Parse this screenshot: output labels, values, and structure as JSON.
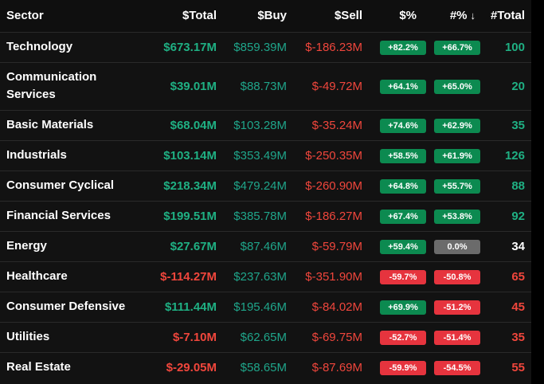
{
  "headers": {
    "sector": "Sector",
    "total": "$Total",
    "buy": "$Buy",
    "sell": "$Sell",
    "pct": "$%",
    "pct_count": "#%",
    "pct_count_sort_icon": "arrow-down-icon",
    "count": "#Total"
  },
  "colors": {
    "positive": "#1fb083",
    "negative": "#f0463c",
    "neutral": "#ffffff",
    "badge_positive": "#0c8a50",
    "badge_negative": "#e6343e",
    "badge_neutral": "#6b6b6b"
  },
  "rows": [
    {
      "sector": "Technology",
      "total": "$673.17M",
      "buy": "$859.39M",
      "sell": "$-186.23M",
      "pct": "+82.2%",
      "pct_count": "+66.7%",
      "count": "100",
      "sign": "pos",
      "count_sign": "pos"
    },
    {
      "sector": "Communication Services",
      "total": "$39.01M",
      "buy": "$88.73M",
      "sell": "$-49.72M",
      "pct": "+64.1%",
      "pct_count": "+65.0%",
      "count": "20",
      "sign": "pos",
      "count_sign": "pos"
    },
    {
      "sector": "Basic Materials",
      "total": "$68.04M",
      "buy": "$103.28M",
      "sell": "$-35.24M",
      "pct": "+74.6%",
      "pct_count": "+62.9%",
      "count": "35",
      "sign": "pos",
      "count_sign": "pos"
    },
    {
      "sector": "Industrials",
      "total": "$103.14M",
      "buy": "$353.49M",
      "sell": "$-250.35M",
      "pct": "+58.5%",
      "pct_count": "+61.9%",
      "count": "126",
      "sign": "pos",
      "count_sign": "pos"
    },
    {
      "sector": "Consumer Cyclical",
      "total": "$218.34M",
      "buy": "$479.24M",
      "sell": "$-260.90M",
      "pct": "+64.8%",
      "pct_count": "+55.7%",
      "count": "88",
      "sign": "pos",
      "count_sign": "pos"
    },
    {
      "sector": "Financial Services",
      "total": "$199.51M",
      "buy": "$385.78M",
      "sell": "$-186.27M",
      "pct": "+67.4%",
      "pct_count": "+53.8%",
      "count": "92",
      "sign": "pos",
      "count_sign": "pos"
    },
    {
      "sector": "Energy",
      "total": "$27.67M",
      "buy": "$87.46M",
      "sell": "$-59.79M",
      "pct": "+59.4%",
      "pct_count": "0.0%",
      "count": "34",
      "sign": "pos",
      "count_sign": "neu"
    },
    {
      "sector": "Healthcare",
      "total": "$-114.27M",
      "buy": "$237.63M",
      "sell": "$-351.90M",
      "pct": "-59.7%",
      "pct_count": "-50.8%",
      "count": "65",
      "sign": "neg",
      "count_sign": "neg"
    },
    {
      "sector": "Consumer Defensive",
      "total": "$111.44M",
      "buy": "$195.46M",
      "sell": "$-84.02M",
      "pct": "+69.9%",
      "pct_count": "-51.2%",
      "count": "45",
      "sign": "pos",
      "count_sign": "neg"
    },
    {
      "sector": "Utilities",
      "total": "$-7.10M",
      "buy": "$62.65M",
      "sell": "$-69.75M",
      "pct": "-52.7%",
      "pct_count": "-51.4%",
      "count": "35",
      "sign": "neg",
      "count_sign": "neg"
    },
    {
      "sector": "Real Estate",
      "total": "$-29.05M",
      "buy": "$58.65M",
      "sell": "$-87.69M",
      "pct": "-59.9%",
      "pct_count": "-54.5%",
      "count": "55",
      "sign": "neg",
      "count_sign": "neg"
    }
  ]
}
